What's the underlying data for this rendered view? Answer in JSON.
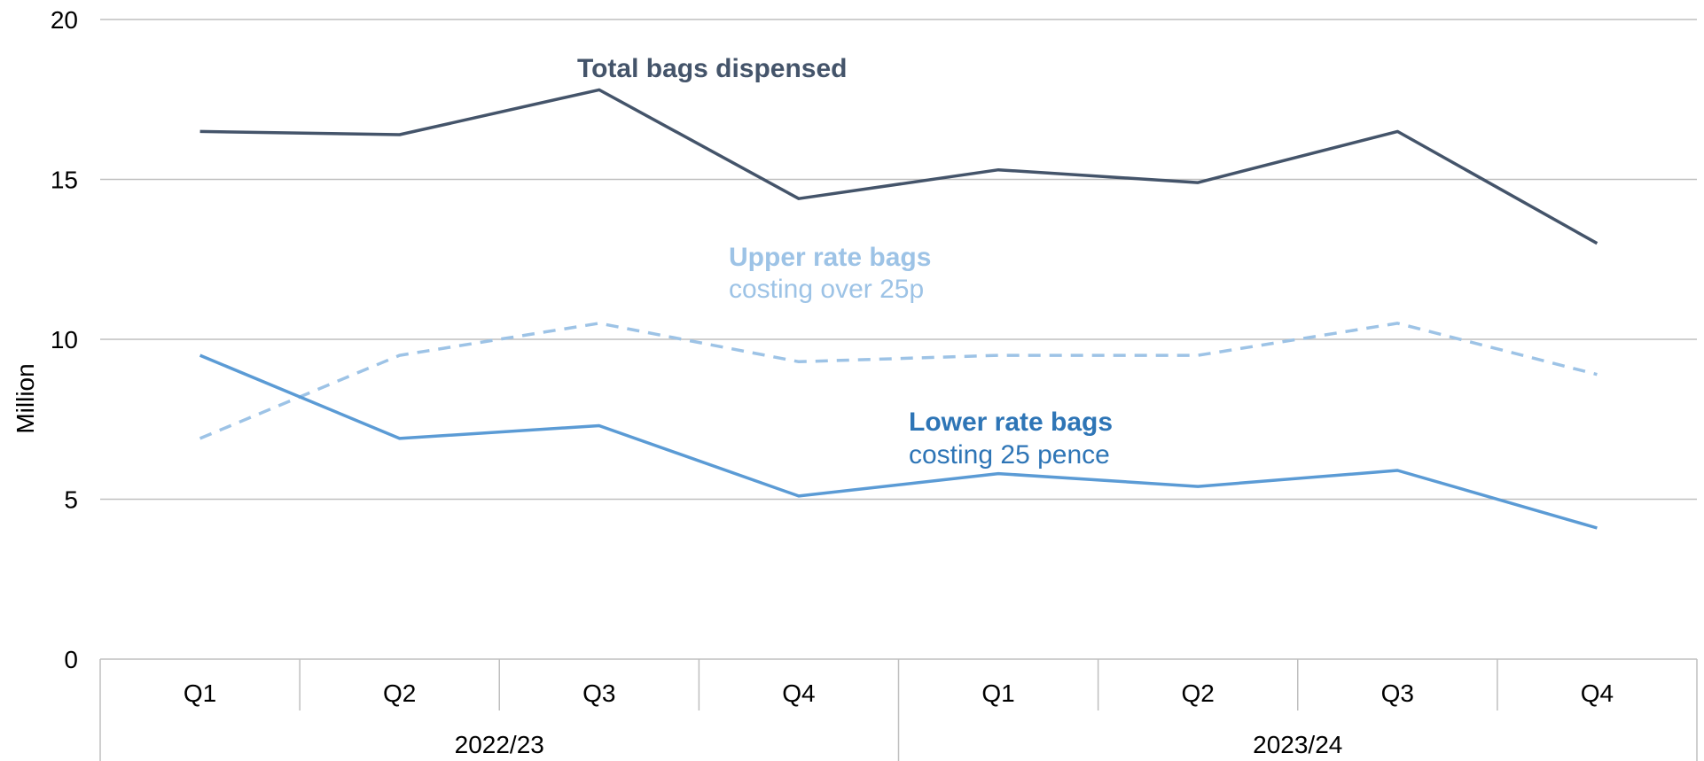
{
  "chart_data": {
    "type": "line",
    "ylabel": "Million",
    "ylim": [
      0,
      20
    ],
    "yticks": [
      "0",
      "5",
      "10",
      "15",
      "20"
    ],
    "categories": [
      "Q1",
      "Q2",
      "Q3",
      "Q4",
      "Q1",
      "Q2",
      "Q3",
      "Q4"
    ],
    "groups": [
      {
        "label": "2022/23",
        "span": [
          0,
          3
        ]
      },
      {
        "label": "2023/24",
        "span": [
          4,
          7
        ]
      }
    ],
    "grid": true,
    "series": [
      {
        "key": "total",
        "name": "Total bags dispensed",
        "color": "#44546A",
        "style": "solid",
        "values": [
          16.5,
          16.4,
          17.8,
          14.4,
          15.3,
          14.9,
          16.5,
          13.0
        ]
      },
      {
        "key": "upper",
        "name": "Upper rate bags",
        "subtitle": "costing over 25p",
        "color": "#9DC3E6",
        "style": "dashed",
        "values": [
          6.9,
          9.5,
          10.5,
          9.3,
          9.5,
          9.5,
          10.5,
          8.9
        ]
      },
      {
        "key": "lower",
        "name": "Lower rate bags",
        "subtitle": "costing 25 pence",
        "color": "#5B9BD5",
        "style": "solid",
        "values": [
          9.5,
          6.9,
          7.3,
          5.1,
          5.8,
          5.4,
          5.9,
          4.1
        ]
      }
    ]
  },
  "annotations": {
    "total_title": "Total bags dispensed",
    "upper_title": "Upper rate bags",
    "upper_sub": "costing over 25p",
    "lower_title": "Lower rate bags",
    "lower_sub": "costing 25 pence",
    "lower_title_color": "#2E75B6"
  }
}
